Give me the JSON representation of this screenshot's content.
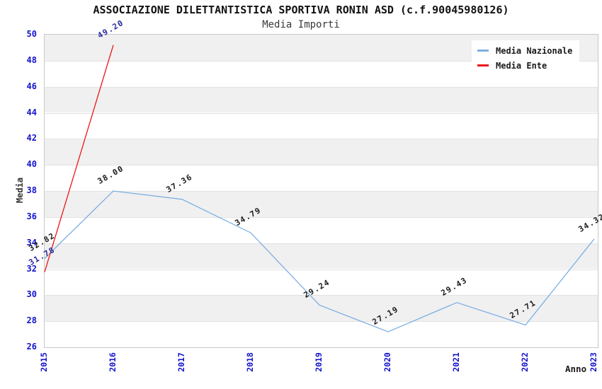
{
  "title": "ASSOCIAZIONE DILETTANTISTICA SPORTIVA RONIN ASD (c.f.90045980126)",
  "subtitle": "Media Importi",
  "axis": {
    "x_title": "Anno",
    "y_title": "Media",
    "tick_color": "#1414cc"
  },
  "legend": {
    "items": [
      {
        "label": "Media Nazionale",
        "color": "#7dafe2"
      },
      {
        "label": "Media Ente",
        "color": "#ed1515"
      }
    ]
  },
  "chart_data": {
    "type": "line",
    "title": "ASSOCIAZIONE DILETTANTISTICA SPORTIVA RONIN ASD (c.f.90045980126)",
    "subtitle": "Media Importi",
    "x": [
      "2015",
      "2016",
      "2017",
      "2018",
      "2019",
      "2020",
      "2021",
      "2022",
      "2023"
    ],
    "series": [
      {
        "name": "Media Nazionale",
        "color": "#7dafe2",
        "label_color": "#1a1a1a",
        "values": [
          32.82,
          38.0,
          37.36,
          34.79,
          29.24,
          27.19,
          29.43,
          27.71,
          34.32
        ]
      },
      {
        "name": "Media Ente",
        "color": "#ed1515",
        "label_color": "#2a2a9a",
        "values": [
          31.78,
          49.2,
          null,
          null,
          null,
          null,
          null,
          null,
          null
        ]
      }
    ],
    "xlabel": "Anno",
    "ylabel": "Media",
    "ylim": [
      26,
      50
    ],
    "ytick_step": 2,
    "grid": true,
    "band_colors": [
      "#f0f0f0",
      "#ffffff"
    ],
    "gridline_color": "#e2e2e2",
    "plot_border_color": "#c8c8c8",
    "legend_position": "top-right"
  }
}
